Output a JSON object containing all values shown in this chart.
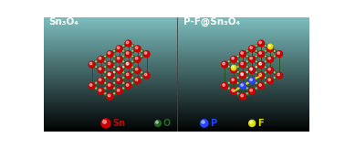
{
  "title_left": "Sn₃O₄",
  "title_right": "P-F@Sn₃O₄",
  "atom_colors": {
    "Sn": "#cc0000",
    "O": "#226622",
    "P": "#2244ff",
    "F": "#dddd00"
  },
  "bond_color": "#1a5c1a",
  "bg_color_top": "#000000",
  "bg_color_bottom": "#7bbcbc",
  "fig_width": 3.78,
  "fig_height": 1.62
}
